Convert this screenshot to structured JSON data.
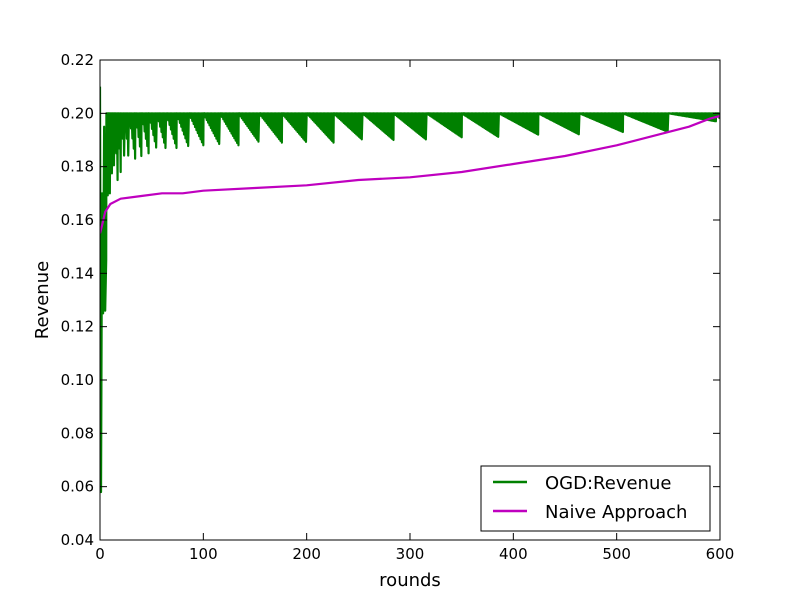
{
  "chart_data": {
    "type": "line",
    "title": "",
    "xlabel": "rounds",
    "ylabel": "Revenue",
    "xlim": [
      0,
      600
    ],
    "ylim": [
      0.04,
      0.22
    ],
    "xticks": [
      "0",
      "100",
      "200",
      "300",
      "400",
      "500",
      "600"
    ],
    "yticks": [
      "0.04",
      "0.06",
      "0.08",
      "0.10",
      "0.12",
      "0.14",
      "0.16",
      "0.18",
      "0.20",
      "0.22"
    ],
    "grid": false,
    "legend_position": "bottom-right",
    "series": [
      {
        "name": "OGD:Revenue",
        "color": "#008000",
        "style": "sawtooth",
        "x": [
          0,
          1,
          2,
          3,
          4,
          5,
          6,
          8,
          10,
          12,
          14,
          17,
          20,
          24,
          28,
          34,
          40,
          47,
          55,
          64,
          74,
          86,
          100,
          116,
          134,
          154,
          176,
          200,
          226,
          254,
          284,
          316,
          350,
          386,
          424,
          464,
          506,
          550,
          596,
          600
        ],
        "values": [
          0.21,
          0.058,
          0.17,
          0.125,
          0.195,
          0.126,
          0.145,
          0.159,
          0.16,
          0.17,
          0.174,
          0.175,
          0.178,
          0.181,
          0.181,
          0.183,
          0.184,
          0.185,
          0.186,
          0.186,
          0.187,
          0.187,
          0.188,
          0.188,
          0.188,
          0.189,
          0.189,
          0.189,
          0.189,
          0.19,
          0.19,
          0.19,
          0.191,
          0.191,
          0.192,
          0.192,
          0.193,
          0.193,
          0.197,
          0.198
        ],
        "peak": 0.2
      },
      {
        "name": "Naive Approach",
        "color": "#bf00bf",
        "style": "line",
        "x": [
          0,
          2,
          5,
          10,
          20,
          40,
          60,
          80,
          100,
          150,
          200,
          250,
          300,
          350,
          400,
          450,
          500,
          540,
          570,
          590,
          600
        ],
        "values": [
          0.155,
          0.158,
          0.163,
          0.166,
          0.168,
          0.169,
          0.17,
          0.17,
          0.171,
          0.172,
          0.173,
          0.175,
          0.176,
          0.178,
          0.181,
          0.184,
          0.188,
          0.192,
          0.195,
          0.198,
          0.199
        ]
      }
    ]
  }
}
